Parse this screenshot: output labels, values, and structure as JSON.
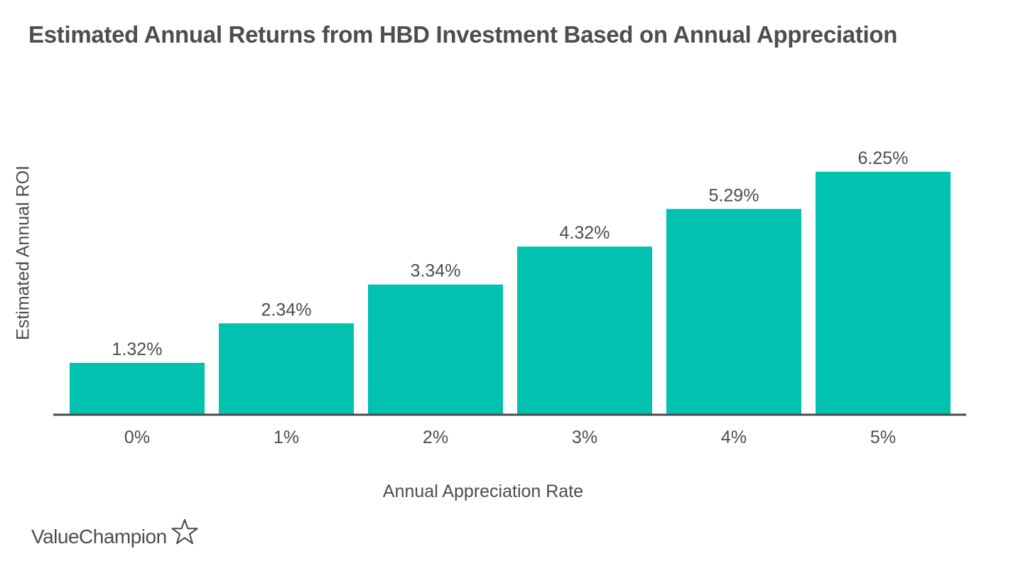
{
  "chart_data": {
    "type": "bar",
    "title": "Estimated Annual Returns from HBD Investment Based on Annual Appreciation",
    "xlabel": "Annual Appreciation Rate",
    "ylabel": "Estimated Annual ROI",
    "categories": [
      "0%",
      "1%",
      "2%",
      "3%",
      "4%",
      "5%"
    ],
    "values": [
      1.32,
      2.34,
      3.34,
      4.32,
      5.29,
      6.25
    ],
    "data_labels": [
      "1.32%",
      "2.34%",
      "3.34%",
      "4.32%",
      "5.29%",
      "6.25%"
    ],
    "ylim": [
      0,
      7.2
    ],
    "grid": false,
    "legend": "none",
    "colors": {
      "bar": "#00c2ae",
      "axis": "#4d4d4d",
      "text": "#4d4d4d"
    }
  },
  "brand": {
    "name": "ValueChampion",
    "icon": "star-outline-icon"
  }
}
